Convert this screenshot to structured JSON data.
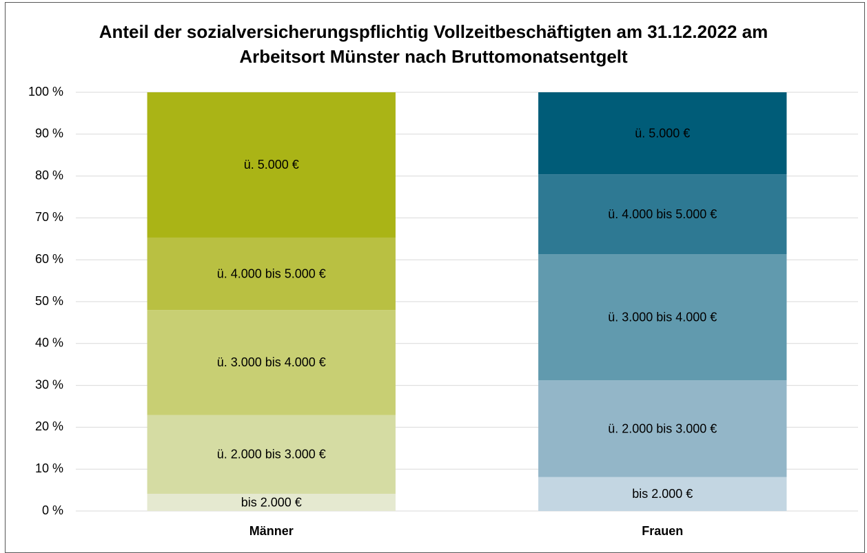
{
  "chart_data": {
    "type": "stacked_bar",
    "title": "Anteil der sozialversicherungspflichtig Vollzeitbeschäftigten am 31.12.2022 am Arbeitsort Münster nach Bruttomonatsentgelt",
    "categories": [
      "Männer",
      "Frauen"
    ],
    "series": [
      {
        "name": "bis 2.000 €",
        "colors": [
          "#e5e9d0",
          "#c3d6e2"
        ],
        "values": [
          4.1,
          8.1
        ]
      },
      {
        "name": "ü. 2.000 bis 3.000 €",
        "colors": [
          "#d5dca3",
          "#93b6c8"
        ],
        "values": [
          18.8,
          23.1
        ]
      },
      {
        "name": "ü. 3.000 bis 4.000 €",
        "colors": [
          "#c8cf73",
          "#619aae"
        ],
        "values": [
          25.1,
          30.1
        ]
      },
      {
        "name": "ü. 4.000 bis 5.000 €",
        "colors": [
          "#b9c042",
          "#2e7993"
        ],
        "values": [
          17.3,
          19.1
        ]
      },
      {
        "name": "ü. 5.000 €",
        "colors": [
          "#aab416",
          "#005c78"
        ],
        "values": [
          34.7,
          19.6
        ]
      }
    ],
    "ylim": [
      0,
      100
    ],
    "yticks": [
      {
        "value": 0,
        "label": "0 %"
      },
      {
        "value": 10,
        "label": "10 %"
      },
      {
        "value": 20,
        "label": "20 %"
      },
      {
        "value": 30,
        "label": "30 %"
      },
      {
        "value": 40,
        "label": "40 %"
      },
      {
        "value": 50,
        "label": "50 %"
      },
      {
        "value": 60,
        "label": "60 %"
      },
      {
        "value": 70,
        "label": "70 %"
      },
      {
        "value": 80,
        "label": "80 %"
      },
      {
        "value": 90,
        "label": "90 %"
      },
      {
        "value": 100,
        "label": "100 %"
      }
    ],
    "grid": true
  }
}
